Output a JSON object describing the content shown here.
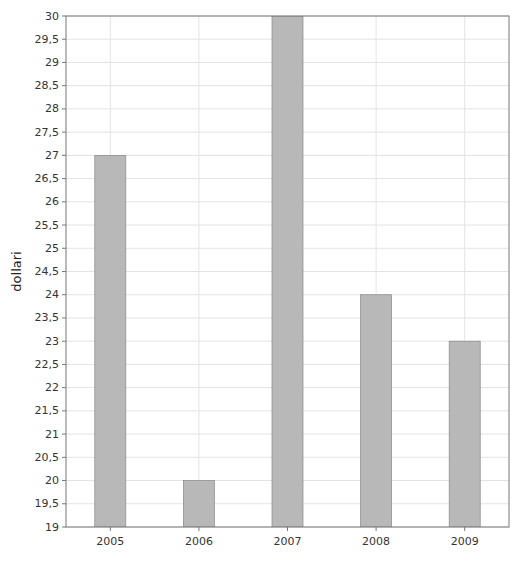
{
  "chart_data": {
    "type": "bar",
    "y_label": "dollari",
    "categories": [
      "2005",
      "2006",
      "2007",
      "2008",
      "2009"
    ],
    "values": [
      27,
      20,
      30,
      24,
      23
    ],
    "color": "#b8b8b8",
    "ylim": [
      19,
      30
    ],
    "yticks": [
      19,
      {
        "value": 19.5,
        "label": "19,5"
      },
      20,
      {
        "value": 20.5,
        "label": "20,5"
      },
      21,
      {
        "value": 21.5,
        "label": "21,5"
      },
      22,
      {
        "value": 22.5,
        "label": "22,5"
      },
      23,
      {
        "value": 23.5,
        "label": "23,5"
      },
      24,
      {
        "value": 24.5,
        "label": "24,5"
      },
      25,
      {
        "value": 25.5,
        "label": "25,5"
      },
      26,
      {
        "value": 26.5,
        "label": "26,5"
      },
      27,
      {
        "value": 27.5,
        "label": "27,5"
      },
      28,
      {
        "value": 28.5,
        "label": "28,5"
      },
      29,
      {
        "value": 29.5,
        "label": "29,5"
      },
      30
    ],
    "grid": true
  }
}
